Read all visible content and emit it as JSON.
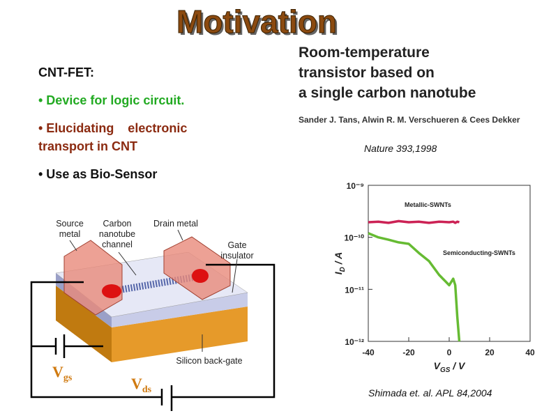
{
  "slide": {
    "title": "Motivation",
    "bullets": {
      "heading": "CNT-FET:",
      "item1": "• Device for logic circuit.",
      "item2a": "• Elucidating    electronic",
      "item2b": "transport in CNT",
      "item3": "• Use as Bio-Sensor"
    },
    "paper": {
      "line1": "Room-temperature",
      "line2": "transistor based on",
      "line3": "a single carbon nanotube",
      "authors": "Sander J. Tans, Alwin R. M. Verschueren & Cees Dekker",
      "citation": "Nature 393,1998"
    },
    "diagram": {
      "source1": "Source",
      "source2": "metal",
      "carbon1": "Carbon",
      "carbon2": "nanotube",
      "carbon3": "channel",
      "drain": "Drain metal",
      "gate1": "Gate",
      "gate2": "insulator",
      "silicon": "Silicon back-gate",
      "vgs": {
        "main": "V",
        "sub": "gs"
      },
      "vds": {
        "main": "V",
        "sub": "ds"
      }
    },
    "chart_citation": "Shimada et. al. APL 84,2004"
  },
  "chart_data": {
    "type": "line",
    "log_y": true,
    "xlabel": {
      "main": "V",
      "sub": "GS",
      "rest": " / V"
    },
    "ylabel": {
      "main": "I",
      "sub": "D",
      "rest": " / A"
    },
    "x": [
      -40,
      -35,
      -30,
      -25,
      -20,
      -15,
      -10,
      -5,
      0,
      2,
      3,
      4,
      5
    ],
    "series": [
      {
        "name": "Metallic-SWNTs",
        "color": "#cc2255",
        "values": [
          1.95e-10,
          2e-10,
          1.9e-10,
          2.05e-10,
          1.95e-10,
          2e-10,
          1.9e-10,
          2e-10,
          1.95e-10,
          2e-10,
          1.9e-10,
          2e-10,
          1.95e-10
        ]
      },
      {
        "name": "Semiconducting-SWNTs",
        "color": "#66bb33",
        "values": [
          1.2e-10,
          1e-10,
          9e-11,
          8e-11,
          7.5e-11,
          5e-11,
          3.5e-11,
          1.9e-11,
          1.2e-11,
          1.6e-11,
          1.2e-11,
          3e-12,
          1e-12
        ]
      }
    ],
    "xlim": [
      -40,
      40
    ],
    "xticks": [
      -40,
      -20,
      0,
      20,
      40
    ],
    "ylim": [
      1e-12,
      1e-09
    ],
    "yticks": [
      {
        "value": 1e-12,
        "label": "10⁻¹²"
      },
      {
        "value": 1e-11,
        "label": "10⁻¹¹"
      },
      {
        "value": 1e-10,
        "label": "10⁻¹⁰"
      },
      {
        "value": 1e-09,
        "label": "10⁻⁹"
      }
    ]
  }
}
